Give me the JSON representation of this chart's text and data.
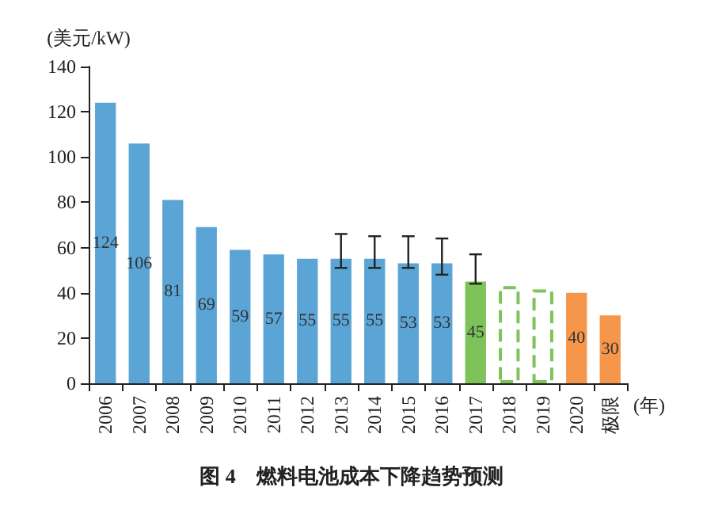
{
  "chart_data": {
    "type": "bar",
    "title": "图 4　燃料电池成本下降趋势预测",
    "ylabel": "(美元/kW)",
    "xlabel": "(年)",
    "categories": [
      "2006",
      "2007",
      "2008",
      "2009",
      "2010",
      "2011",
      "2012",
      "2013",
      "2014",
      "2015",
      "2016",
      "2017",
      "2018",
      "2019",
      "2020",
      "极限"
    ],
    "ylim": [
      0,
      140
    ],
    "yticks": [
      0,
      20,
      40,
      60,
      80,
      100,
      120,
      140
    ],
    "grid": false,
    "series": [
      {
        "values": [
          124,
          106,
          81,
          69,
          59,
          57,
          55,
          55,
          55,
          53,
          53,
          45,
          null,
          null,
          40,
          30
        ],
        "colors": [
          "#5aa5d6",
          "#5aa5d6",
          "#5aa5d6",
          "#5aa5d6",
          "#5aa5d6",
          "#5aa5d6",
          "#5aa5d6",
          "#5aa5d6",
          "#5aa5d6",
          "#5aa5d6",
          "#5aa5d6",
          "#7dc35a",
          "#7dc35a",
          "#7dc35a",
          "#f5964a",
          "#f5964a"
        ],
        "value_labels": [
          "124",
          "106",
          "81",
          "69",
          "59",
          "57",
          "55",
          "55",
          "55",
          "53",
          "53",
          "45",
          null,
          null,
          "40",
          "30"
        ],
        "errors": [
          null,
          null,
          null,
          null,
          null,
          null,
          null,
          [
            51,
            66
          ],
          [
            51,
            65
          ],
          [
            51,
            65
          ],
          [
            48,
            64
          ],
          [
            44,
            57
          ],
          null,
          null,
          null,
          null
        ]
      },
      {
        "values": [
          null,
          null,
          null,
          null,
          null,
          null,
          null,
          null,
          null,
          null,
          null,
          null,
          43,
          41.5,
          null,
          null
        ],
        "color": "#7dc35a",
        "line_style": "dashed"
      }
    ]
  }
}
